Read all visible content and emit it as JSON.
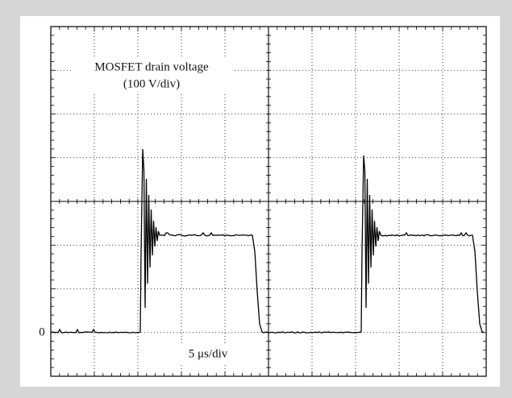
{
  "trace": {
    "label": "MOSFET drain voltage",
    "scale": "(100 V/div)"
  },
  "zero_label": "0",
  "time_scale": "5 μs/div"
}
